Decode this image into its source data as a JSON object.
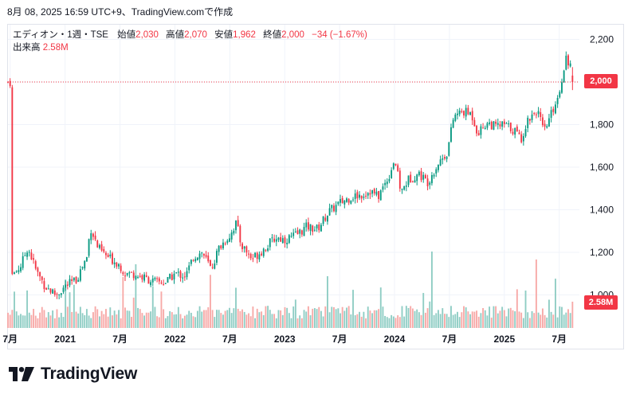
{
  "header": {
    "timestamp": "8月 08, 2025 16:59 UTC+9、TradingView.comで作成"
  },
  "legend": {
    "title": "エディオン・1週・TSE",
    "open_label": "始値",
    "open_value": "2,030",
    "high_label": "高値",
    "high_value": "2,070",
    "low_label": "安値",
    "low_value": "1,962",
    "close_label": "終値",
    "close_value": "2,000",
    "change_value": "−34 (−1.67%)",
    "volume_label": "出来高",
    "volume_value": "2.58M"
  },
  "badges": {
    "last_price": "2,000",
    "last_volume": "2.58M"
  },
  "brand": {
    "name": "TradingView",
    "logo_icon": "tradingview-logo-icon"
  },
  "colors": {
    "up": "#089981",
    "down": "#f23645",
    "volume_up": "#8fcdc4",
    "volume_down": "#f7a9a7",
    "price_line": "#f23645",
    "grid": "#f0f3fa"
  },
  "chart_data": {
    "type": "candlestick",
    "interval": "1 week",
    "symbol": "エディオン",
    "exchange": "TSE",
    "price_axis": {
      "ticks": [
        1000,
        1200,
        1400,
        1600,
        1800,
        2000,
        2200
      ],
      "tick_labels": [
        "1,000",
        "1,200",
        "1,400",
        "1,600",
        "1,800",
        "2,000",
        "2,200"
      ],
      "range": [
        1000,
        2200
      ]
    },
    "time_axis": {
      "tick_labels": [
        "7月",
        "2021",
        "7月",
        "2022",
        "7月",
        "2023",
        "7月",
        "2024",
        "7月",
        "2025",
        "7月"
      ]
    },
    "last_bar": {
      "open": 2030,
      "high": 2070,
      "low": 1962,
      "close": 2000,
      "change": -34,
      "change_pct": -1.67,
      "volume": "2.58M"
    },
    "close_path": [
      [
        2020.5,
        1080
      ],
      [
        2020.6,
        1140
      ],
      [
        2020.66,
        1225
      ],
      [
        2020.74,
        1110
      ],
      [
        2020.82,
        1040
      ],
      [
        2020.92,
        1000
      ],
      [
        2021.0,
        1040
      ],
      [
        2021.1,
        1070
      ],
      [
        2021.2,
        1180
      ],
      [
        2021.23,
        1320
      ],
      [
        2021.3,
        1220
      ],
      [
        2021.38,
        1180
      ],
      [
        2021.48,
        1150
      ],
      [
        2021.55,
        1100
      ],
      [
        2021.62,
        1100
      ],
      [
        2021.72,
        1080
      ],
      [
        2021.82,
        1060
      ],
      [
        2021.92,
        1060
      ],
      [
        2022.0,
        1100
      ],
      [
        2022.1,
        1090
      ],
      [
        2022.17,
        1180
      ],
      [
        2022.25,
        1200
      ],
      [
        2022.33,
        1120
      ],
      [
        2022.4,
        1220
      ],
      [
        2022.5,
        1280
      ],
      [
        2022.56,
        1340
      ],
      [
        2022.6,
        1240
      ],
      [
        2022.7,
        1170
      ],
      [
        2022.82,
        1220
      ],
      [
        2022.92,
        1270
      ],
      [
        2023.0,
        1260
      ],
      [
        2023.1,
        1280
      ],
      [
        2023.2,
        1320
      ],
      [
        2023.3,
        1310
      ],
      [
        2023.4,
        1390
      ],
      [
        2023.5,
        1430
      ],
      [
        2023.6,
        1460
      ],
      [
        2023.7,
        1470
      ],
      [
        2023.78,
        1490
      ],
      [
        2023.85,
        1460
      ],
      [
        2023.95,
        1560
      ],
      [
        2024.0,
        1640
      ],
      [
        2024.06,
        1480
      ],
      [
        2024.12,
        1540
      ],
      [
        2024.22,
        1570
      ],
      [
        2024.3,
        1530
      ],
      [
        2024.4,
        1620
      ],
      [
        2024.48,
        1670
      ],
      [
        2024.54,
        1840
      ],
      [
        2024.62,
        1860
      ],
      [
        2024.7,
        1850
      ],
      [
        2024.76,
        1760
      ],
      [
        2024.84,
        1810
      ],
      [
        2024.92,
        1790
      ],
      [
        2025.0,
        1800
      ],
      [
        2025.1,
        1770
      ],
      [
        2025.15,
        1730
      ],
      [
        2025.22,
        1830
      ],
      [
        2025.3,
        1870
      ],
      [
        2025.36,
        1760
      ],
      [
        2025.42,
        1840
      ],
      [
        2025.5,
        1950
      ],
      [
        2025.56,
        2120
      ],
      [
        2025.62,
        2060
      ],
      [
        2025.62,
        2000
      ]
    ]
  }
}
